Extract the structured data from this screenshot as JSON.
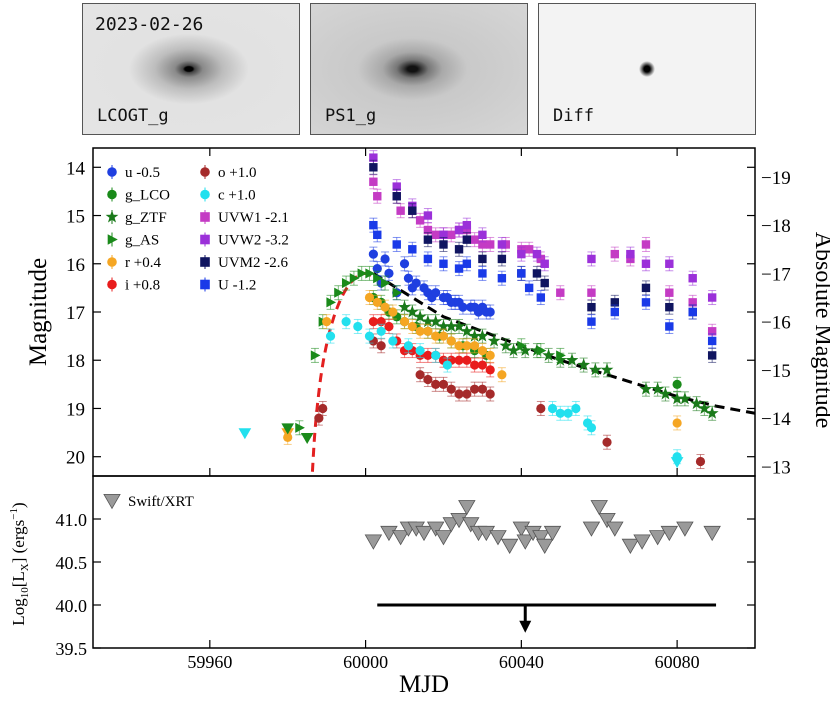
{
  "panels": [
    {
      "label": "LCOGT_g",
      "date": "2023-02-26"
    },
    {
      "label": "PS1_g"
    },
    {
      "label": "Diff"
    }
  ],
  "colors": {
    "u": "#1f3fe0",
    "g_LCO": "#1a8a1a",
    "g_ZTF": "#1a7a1a",
    "g_AS": "#1a8a1a",
    "r": "#f5a623",
    "i": "#e81c1c",
    "o": "#a52a2a",
    "c": "#22e0ee",
    "UVW1": "#c43bc4",
    "UVW2": "#9b30d9",
    "UVM2": "#101560",
    "U": "#1a3ae8",
    "xrt": "#9a9a9a",
    "rise": "#e32020",
    "decline": "#000000"
  },
  "chart_data": [
    {
      "type": "scatter",
      "ylabel": "Magnitude",
      "ylabel_right": "Absolute Magnitude",
      "ylim": [
        20.4,
        13.6
      ],
      "yticks": [
        14,
        15,
        16,
        17,
        18,
        19,
        20
      ],
      "right_yticks": [
        19,
        18,
        17,
        16,
        15,
        14,
        13
      ],
      "xlim": [
        59930,
        60100
      ],
      "legend_placement": "top-left",
      "series": [
        {
          "name": "u -0.5",
          "key": "u",
          "marker": "circle",
          "x": [
            60002,
            60003,
            60004,
            60005,
            60006,
            60008,
            60010,
            60011,
            60012,
            60013,
            60015,
            60016,
            60017,
            60018,
            60020,
            60021,
            60022,
            60023,
            60024,
            60025,
            60027,
            60028,
            60029,
            60030,
            60031,
            60032
          ],
          "y": [
            15.8,
            16.1,
            16.4,
            15.9,
            16.2,
            16.6,
            16.0,
            16.3,
            16.5,
            16.4,
            16.5,
            16.6,
            16.7,
            16.6,
            16.7,
            16.7,
            16.8,
            16.8,
            16.8,
            16.9,
            16.9,
            16.9,
            17.0,
            16.9,
            17.0,
            17.0
          ]
        },
        {
          "name": "g_LCO",
          "key": "g_LCO",
          "marker": "circle",
          "x": [
            60002,
            60004,
            60006,
            60008,
            60010,
            60013,
            60016,
            60019,
            60022,
            60025,
            60028,
            60031,
            60080
          ],
          "y": [
            16.7,
            16.8,
            17.0,
            17.1,
            17.2,
            17.3,
            17.4,
            17.5,
            17.6,
            17.7,
            17.8,
            17.9,
            18.5
          ]
        },
        {
          "name": "g_ZTF",
          "key": "g_ZTF",
          "marker": "star",
          "x": [
            60010,
            60012,
            60014,
            60016,
            60018,
            60020,
            60022,
            60024,
            60026,
            60028,
            60030,
            60033,
            60036,
            60038,
            60041,
            60044,
            60047,
            60050,
            60053,
            60056,
            60059,
            60062,
            60072,
            60075,
            60077,
            60080,
            60082,
            60085,
            60087,
            60089
          ],
          "y": [
            16.9,
            17.0,
            17.1,
            17.2,
            17.2,
            17.3,
            17.3,
            17.3,
            17.4,
            17.5,
            17.5,
            17.6,
            17.7,
            17.8,
            17.8,
            17.8,
            17.9,
            18.0,
            18.0,
            18.1,
            18.2,
            18.2,
            18.6,
            18.6,
            18.7,
            18.8,
            18.8,
            18.9,
            19.0,
            19.1
          ]
        },
        {
          "name": "g_AS",
          "key": "g_AS",
          "marker": "triangle-right",
          "x": [
            59983,
            59987,
            59989,
            59991,
            59993,
            59995,
            59997,
            59999,
            60001,
            60003,
            60005,
            60008,
            60040,
            60045,
            60050
          ],
          "y": [
            19.4,
            17.9,
            17.2,
            16.8,
            16.6,
            16.4,
            16.3,
            16.2,
            16.2,
            16.3,
            16.4,
            16.6,
            17.7,
            17.8,
            17.9
          ]
        },
        {
          "name": "r +0.4",
          "key": "r",
          "marker": "circle",
          "x": [
            59980,
            59990,
            60001,
            60003,
            60005,
            60007,
            60010,
            60012,
            60014,
            60016,
            60018,
            60020,
            60022,
            60024,
            60026,
            60028,
            60030,
            60032,
            60035,
            60080
          ],
          "y": [
            19.6,
            17.2,
            16.7,
            16.8,
            16.9,
            17.0,
            17.2,
            17.3,
            17.4,
            17.4,
            17.5,
            17.5,
            17.6,
            17.7,
            17.7,
            17.7,
            17.8,
            17.9,
            18.3,
            19.3
          ]
        },
        {
          "name": "i +0.8",
          "key": "i",
          "marker": "circle",
          "x": [
            60002,
            60004,
            60006,
            60008,
            60010,
            60012,
            60014,
            60016,
            60018,
            60020,
            60022,
            60024,
            60026,
            60028,
            60030,
            60032
          ],
          "y": [
            17.2,
            17.2,
            17.3,
            17.6,
            17.8,
            17.8,
            17.9,
            17.9,
            17.9,
            18.0,
            18.0,
            18.0,
            18.0,
            18.1,
            18.1,
            18.2
          ]
        },
        {
          "name": "o +1.0",
          "key": "o",
          "marker": "circle",
          "x": [
            59988,
            59989,
            60002,
            60004,
            60014,
            60016,
            60018,
            60020,
            60022,
            60024,
            60026,
            60028,
            60030,
            60032,
            60045,
            60062,
            60086
          ],
          "y": [
            19.2,
            19.0,
            17.6,
            17.7,
            18.3,
            18.4,
            18.5,
            18.5,
            18.6,
            18.7,
            18.7,
            18.6,
            18.6,
            18.7,
            19.0,
            19.7,
            20.1
          ]
        },
        {
          "name": "c +1.0",
          "key": "c",
          "marker": "circle",
          "x": [
            59991,
            59995,
            59998,
            60001,
            60004,
            60007,
            60011,
            60014,
            60018,
            60021,
            60048,
            60050,
            60052,
            60054,
            60057,
            60058,
            60080
          ],
          "y": [
            17.5,
            17.2,
            17.3,
            17.5,
            17.4,
            17.6,
            17.7,
            17.8,
            17.9,
            18.1,
            19.0,
            19.1,
            19.1,
            19.0,
            19.3,
            19.4,
            20.0
          ]
        },
        {
          "name": "UVW1 -2.1",
          "key": "UVW1",
          "marker": "square",
          "x": [
            60002,
            60003,
            60008,
            60009,
            60012,
            60014,
            60016,
            60018,
            60020,
            60022,
            60024,
            60026,
            60028,
            60030,
            60032,
            60036,
            60040,
            60042,
            60045,
            60050,
            60058,
            60064,
            60068,
            60072,
            60078,
            60084,
            60089
          ],
          "y": [
            14.3,
            14.6,
            14.6,
            14.9,
            14.9,
            15.1,
            15.3,
            15.4,
            15.4,
            15.4,
            15.3,
            15.3,
            15.5,
            15.6,
            15.6,
            15.6,
            15.7,
            15.7,
            15.9,
            16.6,
            16.6,
            15.8,
            15.9,
            15.6,
            16.6,
            16.8,
            17.4
          ]
        },
        {
          "name": "UVW2 -3.2",
          "key": "UVW2",
          "marker": "square",
          "x": [
            60002,
            60008,
            60012,
            60016,
            60020,
            60024,
            60026,
            60030,
            60035,
            60040,
            60044,
            60046,
            60058,
            60068,
            60072,
            60078,
            60084,
            60089
          ],
          "y": [
            13.8,
            14.4,
            14.8,
            15.0,
            15.4,
            15.3,
            15.2,
            15.4,
            15.6,
            15.8,
            15.8,
            16.0,
            15.9,
            15.8,
            16.0,
            16.0,
            16.3,
            16.7
          ]
        },
        {
          "name": "UVM2 -2.6",
          "key": "UVM2",
          "marker": "square",
          "x": [
            60002,
            60008,
            60012,
            60016,
            60020,
            60024,
            60026,
            60030,
            60035,
            60040,
            60044,
            60046,
            60058,
            60064,
            60072,
            60078,
            60084,
            60089
          ],
          "y": [
            14.0,
            14.6,
            14.9,
            15.5,
            15.6,
            15.7,
            15.5,
            15.9,
            15.9,
            16.2,
            16.2,
            16.4,
            16.9,
            16.8,
            16.5,
            16.9,
            17.0,
            17.9
          ]
        },
        {
          "name": "U -1.2",
          "key": "U",
          "marker": "square",
          "x": [
            60002,
            60003,
            60008,
            60012,
            60016,
            60020,
            60024,
            60026,
            60030,
            60035,
            60040,
            60042,
            60045,
            60058,
            60064,
            60072,
            60078,
            60084,
            60089
          ],
          "y": [
            15.2,
            15.4,
            15.6,
            15.7,
            15.9,
            16.0,
            16.1,
            16.0,
            16.2,
            16.3,
            16.2,
            16.5,
            16.7,
            17.2,
            17.0,
            16.8,
            17.3,
            17.0,
            17.6
          ]
        }
      ],
      "limits": [
        {
          "key": "c",
          "marker": "triangle-down",
          "x": [
            59969,
            60080
          ],
          "y": [
            19.5,
            20.1
          ]
        },
        {
          "key": "r",
          "marker": "triangle-down",
          "x": [
            59980
          ],
          "y": [
            19.5
          ]
        },
        {
          "key": "g_AS",
          "marker": "triangle-down",
          "x": [
            59980,
            59985
          ],
          "y": [
            19.4,
            19.6
          ]
        }
      ],
      "rise_fit": {
        "t0": 59985,
        "peak_x": 60000,
        "peak_y": 16.2,
        "x_end": 60002
      },
      "decline_fit": {
        "x": [
          60002,
          60010,
          60020,
          60030,
          60040,
          60050,
          60060,
          60070,
          60080,
          60090,
          60100
        ],
        "y": [
          16.2,
          16.6,
          17.1,
          17.4,
          17.7,
          18.0,
          18.25,
          18.5,
          18.75,
          18.95,
          19.1
        ]
      }
    },
    {
      "type": "scatter",
      "ylabel": "Log10[LX] (ergs-1)",
      "ylabel_parts": {
        "log": "Log",
        "sub10": "10",
        "lbracket": "[L",
        "subx": "X",
        "rbracket": "] (ergs",
        "sup": "−1",
        "close": ")"
      },
      "xlabel": "MJD",
      "xlim": [
        59930,
        60100
      ],
      "ylim": [
        39.5,
        41.5
      ],
      "yticks": [
        39.5,
        40.0,
        40.5,
        41.0
      ],
      "xticks": [
        59960,
        60000,
        60040,
        60080
      ],
      "series": [
        {
          "name": "Swift/XRT",
          "key": "xrt",
          "marker": "triangle-down",
          "x": [
            60002,
            60006,
            60009,
            60011,
            60013,
            60015,
            60018,
            60020,
            60022,
            60024,
            60026,
            60027,
            60029,
            60031,
            60034,
            60037,
            60040,
            60041,
            60043,
            60045,
            60046,
            60048,
            60058,
            60060,
            60062,
            60064,
            60068,
            60071,
            60075,
            60078,
            60082,
            60089
          ],
          "y": [
            40.75,
            40.85,
            40.8,
            40.9,
            40.9,
            40.85,
            40.9,
            40.8,
            40.95,
            41.0,
            41.15,
            40.95,
            40.85,
            40.85,
            40.8,
            40.7,
            40.9,
            40.75,
            40.85,
            40.8,
            40.7,
            40.85,
            40.9,
            41.15,
            41.0,
            40.9,
            40.7,
            40.75,
            40.8,
            40.85,
            40.9,
            40.85
          ]
        }
      ],
      "upper_limit": {
        "x_start": 60003,
        "x_end": 60090,
        "y": 40.0,
        "arrow_x": 60041,
        "arrow_to_y": 39.7
      }
    }
  ]
}
